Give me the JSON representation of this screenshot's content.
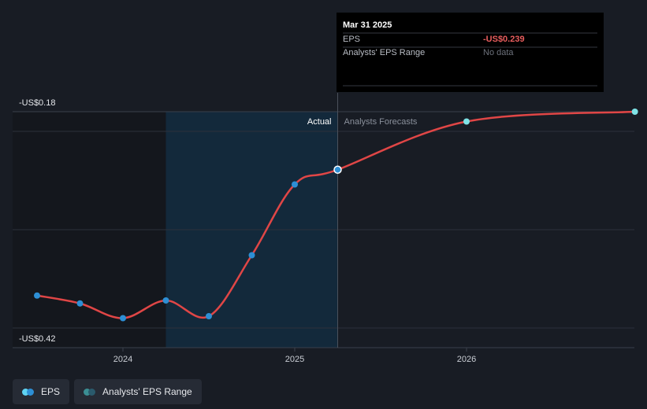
{
  "chart_data": {
    "type": "line",
    "title": "",
    "xlabel": "",
    "ylabel": "",
    "x_ticks": [
      "2024",
      "2025",
      "2026"
    ],
    "y_labels": {
      "top": "-US$0.18",
      "bottom": "-US$0.42"
    },
    "ylim": [
      -0.42,
      -0.18
    ],
    "divider_date": "Mar 31 2025",
    "sections": {
      "actual": "Actual",
      "forecast": "Analysts Forecasts"
    },
    "series": [
      {
        "name": "EPS",
        "actual": [
          {
            "t": 2023.5,
            "v": -0.367
          },
          {
            "t": 2023.75,
            "v": -0.375
          },
          {
            "t": 2024.0,
            "v": -0.39
          },
          {
            "t": 2024.25,
            "v": -0.372
          },
          {
            "t": 2024.5,
            "v": -0.388
          },
          {
            "t": 2024.75,
            "v": -0.326
          },
          {
            "t": 2025.0,
            "v": -0.254
          },
          {
            "t": 2025.25,
            "v": -0.239
          }
        ],
        "forecast": [
          {
            "t": 2025.25,
            "v": -0.239
          },
          {
            "t": 2026.0,
            "v": -0.19
          },
          {
            "t": 2026.98,
            "v": -0.18
          }
        ]
      }
    ]
  },
  "tooltip": {
    "date": "Mar 31 2025",
    "rows": [
      {
        "label": "EPS",
        "value": "-US$0.239"
      },
      {
        "label": "Analysts' EPS Range",
        "value": "No data"
      }
    ]
  },
  "legend": {
    "items": [
      {
        "label": "EPS",
        "colors": [
          "#5fd3f3",
          "#2d8fd5"
        ]
      },
      {
        "label": "Analysts' EPS Range",
        "colors": [
          "#3b8e93",
          "#2a5a6c"
        ]
      }
    ]
  },
  "colors": {
    "line": "#e04646",
    "actual_dot": "#2d8fd5",
    "forecast_dot": "#7fe3e6",
    "value_red": "#e85d5d"
  }
}
